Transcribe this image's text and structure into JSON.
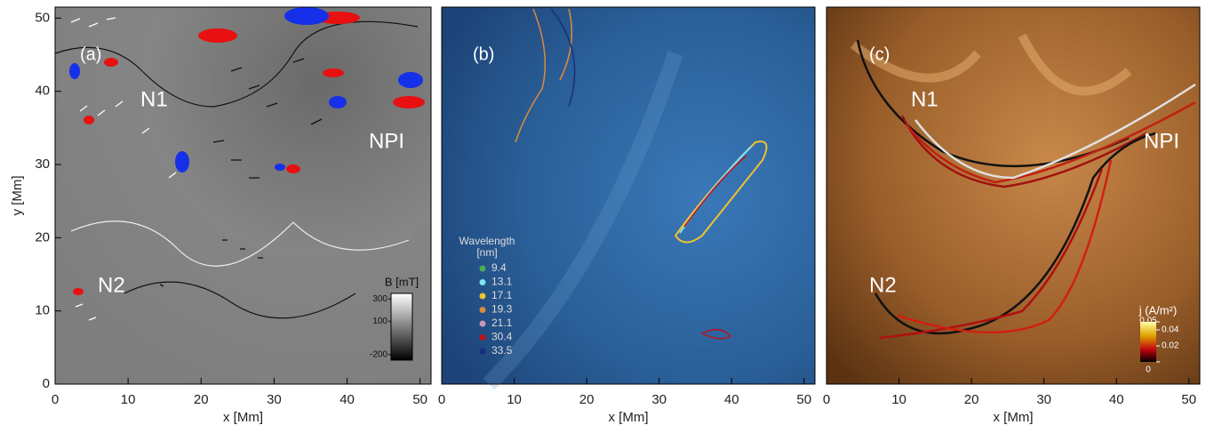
{
  "chart_data": [
    {
      "type": "image",
      "xlabel": "x [Mm]",
      "ylabel": "y [Mm]",
      "xlim": [
        0,
        51.5
      ],
      "ylim": [
        0,
        51.5
      ],
      "xticks": [
        0,
        10,
        20,
        30,
        40,
        50
      ],
      "yticks": [
        0,
        10,
        20,
        30,
        40,
        50
      ],
      "annotations": [
        "(a)",
        "N1",
        "N2",
        "NPI"
      ],
      "colorbar": {
        "label": "B [mT]",
        "clim": [
          -250,
          350
        ],
        "ticks": [
          300,
          100,
          -200
        ]
      }
    },
    {
      "type": "image",
      "xlabel": "x [Mm]",
      "xlim": [
        0,
        51.5
      ],
      "xticks": [
        0,
        10,
        20,
        30,
        40,
        50
      ],
      "annotations": [
        "(b)"
      ],
      "legend": {
        "title": [
          "Wavelength",
          "[nm]"
        ],
        "items": [
          {
            "label": "9.4",
            "color": "#4caf50"
          },
          {
            "label": "13.1",
            "color": "#7fe3f0"
          },
          {
            "label": "17.1",
            "color": "#f2c230"
          },
          {
            "label": "19.3",
            "color": "#e08a3a"
          },
          {
            "label": "21.1",
            "color": "#c59ab8"
          },
          {
            "label": "30.4",
            "color": "#c0101a"
          },
          {
            "label": "33.5",
            "color": "#1a2f7a"
          }
        ]
      }
    },
    {
      "type": "image",
      "xlabel": "x [Mm]",
      "xlim": [
        0,
        51.5
      ],
      "xticks": [
        0,
        10,
        20,
        30,
        40,
        50
      ],
      "annotations": [
        "(c)",
        "N1",
        "N2",
        "NPI"
      ],
      "colorbar": {
        "label": "j (A/m²)",
        "clim": [
          0,
          0.05
        ],
        "ticks": [
          0.05,
          0.04,
          0.02,
          0
        ]
      }
    }
  ]
}
